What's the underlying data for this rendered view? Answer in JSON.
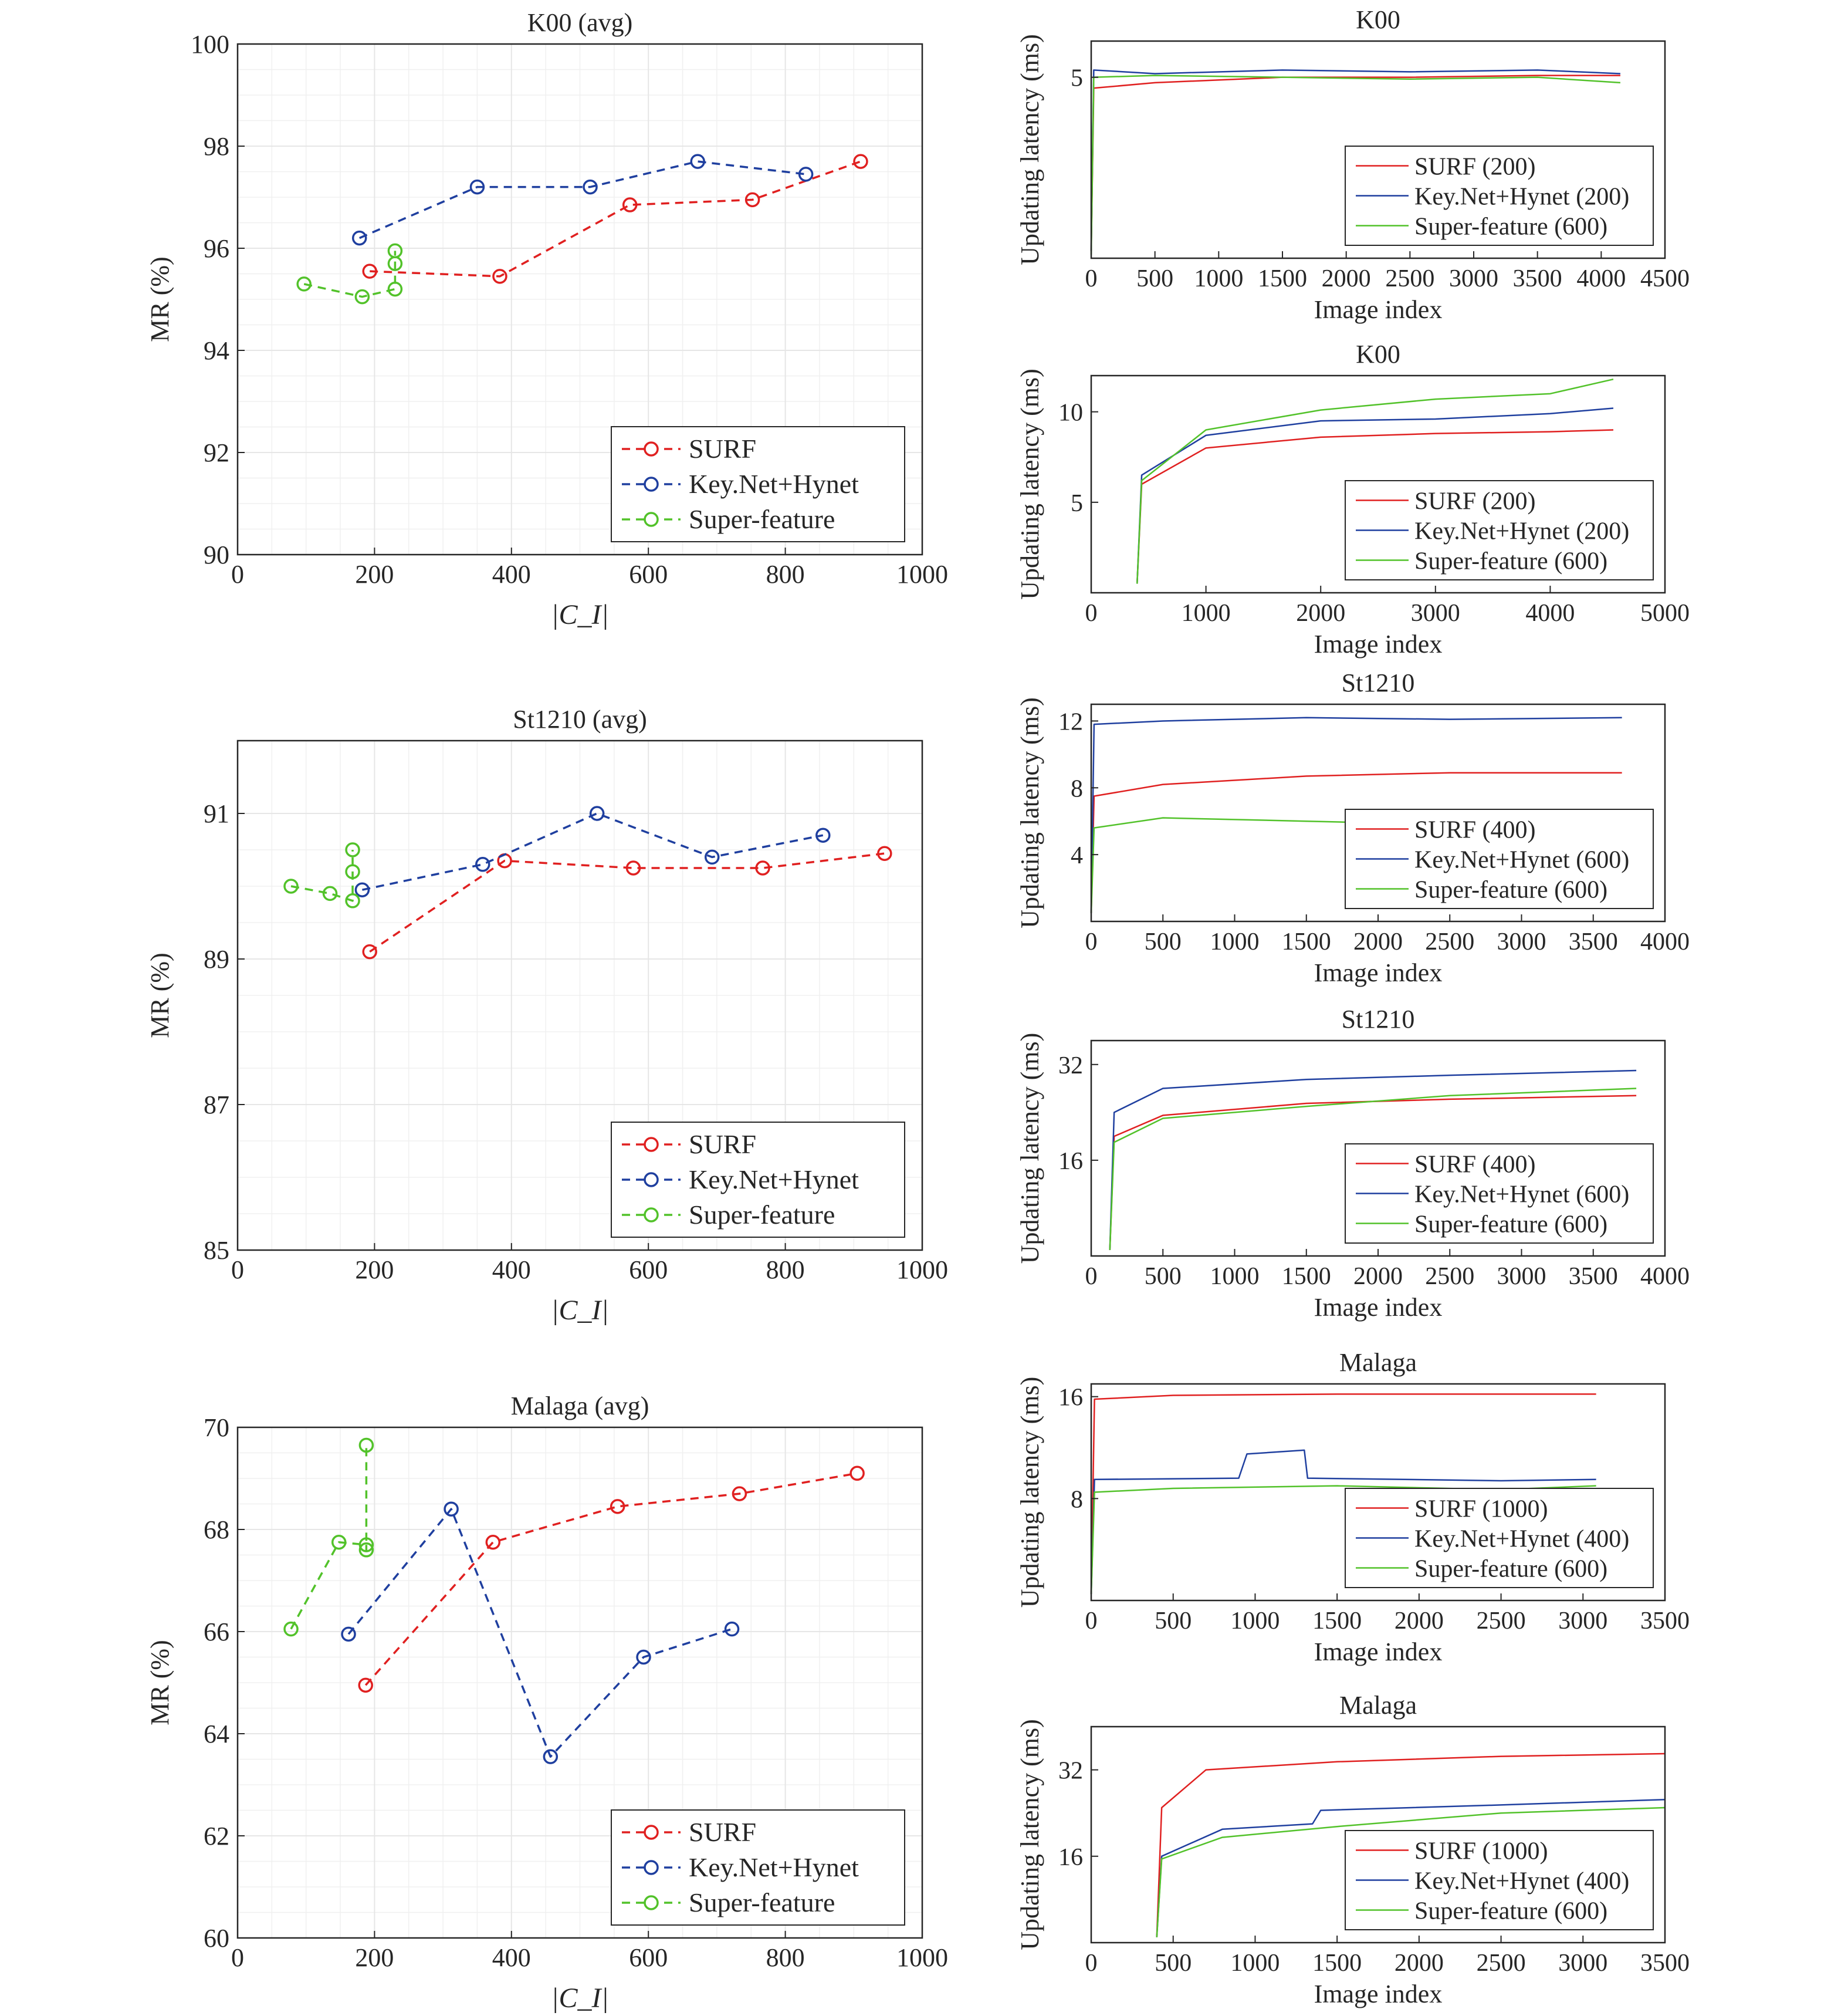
{
  "figure": {
    "colors": {
      "surf": "#e02020",
      "keynet": "#1f3f9f",
      "superfeature": "#52c22a",
      "axis": "#262626",
      "grid": "#e6e6e6"
    }
  },
  "chart_data": [
    {
      "id": "mr-k00",
      "type": "line",
      "marker": "o",
      "dashed": true,
      "title": "K00 (avg)",
      "xlabel": "|C_I|",
      "ylabel": "MR (%)",
      "xlim": [
        0,
        1000
      ],
      "ylim": [
        90,
        100
      ],
      "xticks": [
        0,
        200,
        400,
        600,
        800,
        1000
      ],
      "yticks": [
        90,
        92,
        94,
        96,
        98,
        100
      ],
      "grid": true,
      "minor_grid": true,
      "legend_position": "bottom-right",
      "series": [
        {
          "name": "SURF",
          "color": "#e02020",
          "points": [
            [
              193,
              95.55
            ],
            [
              383,
              95.45
            ],
            [
              573,
              96.85
            ],
            [
              752,
              96.95
            ],
            [
              910,
              97.7
            ]
          ]
        },
        {
          "name": "Key.Net+Hynet",
          "color": "#1f3f9f",
          "points": [
            [
              178,
              96.2
            ],
            [
              350,
              97.2
            ],
            [
              515,
              97.2
            ],
            [
              672,
              97.7
            ],
            [
              830,
              97.45
            ]
          ]
        },
        {
          "name": "Super-feature",
          "color": "#52c22a",
          "points": [
            [
              97,
              95.3
            ],
            [
              182,
              95.05
            ],
            [
              230,
              95.2
            ],
            [
              230,
              95.7
            ],
            [
              230,
              95.95
            ]
          ]
        }
      ]
    },
    {
      "id": "mr-st1210",
      "type": "line",
      "marker": "o",
      "dashed": true,
      "title": "St1210 (avg)",
      "xlabel": "|C_I|",
      "ylabel": "MR (%)",
      "xlim": [
        0,
        1000
      ],
      "ylim": [
        85,
        92
      ],
      "xticks": [
        0,
        200,
        400,
        600,
        800,
        1000
      ],
      "yticks": [
        85,
        87,
        89,
        91
      ],
      "grid": true,
      "minor_grid": true,
      "legend_position": "bottom-right",
      "series": [
        {
          "name": "SURF",
          "color": "#e02020",
          "points": [
            [
              193,
              89.1
            ],
            [
              390,
              90.35
            ],
            [
              578,
              90.25
            ],
            [
              767,
              90.25
            ],
            [
              945,
              90.45
            ]
          ]
        },
        {
          "name": "Key.Net+Hynet",
          "color": "#1f3f9f",
          "points": [
            [
              182,
              89.95
            ],
            [
              358,
              90.3
            ],
            [
              525,
              91.0
            ],
            [
              693,
              90.4
            ],
            [
              855,
              90.7
            ]
          ]
        },
        {
          "name": "Super-feature",
          "color": "#52c22a",
          "points": [
            [
              78,
              90.0
            ],
            [
              135,
              89.9
            ],
            [
              168,
              89.8
            ],
            [
              168,
              90.2
            ],
            [
              168,
              90.5
            ]
          ]
        }
      ]
    },
    {
      "id": "mr-malaga",
      "type": "line",
      "marker": "o",
      "dashed": true,
      "title": "Malaga (avg)",
      "xlabel": "|C_I|",
      "ylabel": "MR (%)",
      "xlim": [
        0,
        1000
      ],
      "ylim": [
        60,
        70
      ],
      "xticks": [
        0,
        200,
        400,
        600,
        800,
        1000
      ],
      "yticks": [
        60,
        62,
        64,
        66,
        68,
        70
      ],
      "grid": true,
      "minor_grid": true,
      "legend_position": "bottom-right",
      "series": [
        {
          "name": "SURF",
          "color": "#e02020",
          "points": [
            [
              187,
              64.95
            ],
            [
              373,
              67.75
            ],
            [
              555,
              68.45
            ],
            [
              733,
              68.7
            ],
            [
              905,
              69.1
            ]
          ]
        },
        {
          "name": "Key.Net+Hynet",
          "color": "#1f3f9f",
          "points": [
            [
              162,
              65.95
            ],
            [
              312,
              68.4
            ],
            [
              457,
              63.55
            ],
            [
              593,
              65.5
            ],
            [
              722,
              66.05
            ]
          ]
        },
        {
          "name": "Super-feature",
          "color": "#52c22a",
          "points": [
            [
              78,
              66.05
            ],
            [
              148,
              67.75
            ],
            [
              188,
              67.7
            ],
            [
              188,
              67.6
            ],
            [
              188,
              69.65
            ]
          ]
        }
      ]
    },
    {
      "id": "lat-k00-a",
      "type": "line",
      "title": "K00",
      "xlabel": "Image index",
      "ylabel": "Updating latency (ms)",
      "xlim": [
        0,
        4500
      ],
      "ylim": [
        0,
        6
      ],
      "xticks": [
        0,
        500,
        1000,
        1500,
        2000,
        2500,
        3000,
        3500,
        4000,
        4500
      ],
      "yticks": [
        5
      ],
      "grid": false,
      "legend_position": "bottom-right",
      "series": [
        {
          "name": "SURF (200)",
          "color": "#e02020",
          "points": [
            [
              0,
              0.2
            ],
            [
              20,
              4.7
            ],
            [
              500,
              4.85
            ],
            [
              1500,
              5.0
            ],
            [
              2500,
              5.0
            ],
            [
              3500,
              5.05
            ],
            [
              4150,
              5.05
            ]
          ]
        },
        {
          "name": "Key.Net+Hynet (200)",
          "color": "#1f3f9f",
          "points": [
            [
              0,
              0.2
            ],
            [
              20,
              5.2
            ],
            [
              500,
              5.1
            ],
            [
              1500,
              5.2
            ],
            [
              2500,
              5.15
            ],
            [
              3500,
              5.2
            ],
            [
              4150,
              5.1
            ]
          ]
        },
        {
          "name": "Super-feature (600)",
          "color": "#52c22a",
          "points": [
            [
              0,
              0.1
            ],
            [
              20,
              5.0
            ],
            [
              500,
              5.05
            ],
            [
              1500,
              5.0
            ],
            [
              2500,
              4.95
            ],
            [
              3500,
              5.0
            ],
            [
              4150,
              4.85
            ]
          ]
        }
      ]
    },
    {
      "id": "lat-k00-b",
      "type": "line",
      "title": "K00",
      "xlabel": "Image index",
      "ylabel": "Updating latency (ms)",
      "xlim": [
        0,
        5000
      ],
      "ylim": [
        0,
        12
      ],
      "xticks": [
        0,
        1000,
        2000,
        3000,
        4000,
        5000
      ],
      "yticks": [
        5,
        10
      ],
      "grid": false,
      "legend_position": "bottom-right",
      "series": [
        {
          "name": "SURF (200)",
          "color": "#e02020",
          "points": [
            [
              400,
              0.5
            ],
            [
              440,
              6.0
            ],
            [
              1000,
              8.0
            ],
            [
              2000,
              8.6
            ],
            [
              3000,
              8.8
            ],
            [
              4000,
              8.9
            ],
            [
              4550,
              9.0
            ]
          ]
        },
        {
          "name": "Key.Net+Hynet (200)",
          "color": "#1f3f9f",
          "points": [
            [
              400,
              0.5
            ],
            [
              440,
              6.5
            ],
            [
              1000,
              8.7
            ],
            [
              2000,
              9.5
            ],
            [
              3000,
              9.6
            ],
            [
              4000,
              9.9
            ],
            [
              4550,
              10.2
            ]
          ]
        },
        {
          "name": "Super-feature (600)",
          "color": "#52c22a",
          "points": [
            [
              400,
              0.5
            ],
            [
              440,
              6.2
            ],
            [
              1000,
              9.0
            ],
            [
              2000,
              10.1
            ],
            [
              3000,
              10.7
            ],
            [
              4000,
              11.0
            ],
            [
              4550,
              11.8
            ]
          ]
        }
      ]
    },
    {
      "id": "lat-st1210-a",
      "type": "line",
      "title": "St1210",
      "xlabel": "Image index",
      "ylabel": "Updating latency (ms)",
      "xlim": [
        0,
        4000
      ],
      "ylim": [
        0,
        13
      ],
      "xticks": [
        0,
        500,
        1000,
        1500,
        2000,
        2500,
        3000,
        3500,
        4000
      ],
      "yticks": [
        4,
        8,
        12
      ],
      "grid": false,
      "legend_position": "bottom-right",
      "series": [
        {
          "name": "SURF (400)",
          "color": "#e02020",
          "points": [
            [
              0,
              0.5
            ],
            [
              20,
              7.5
            ],
            [
              500,
              8.2
            ],
            [
              1500,
              8.7
            ],
            [
              2500,
              8.9
            ],
            [
              3700,
              8.9
            ]
          ]
        },
        {
          "name": "Key.Net+Hynet (600)",
          "color": "#1f3f9f",
          "points": [
            [
              0,
              0.5
            ],
            [
              20,
              11.8
            ],
            [
              500,
              12.0
            ],
            [
              1500,
              12.2
            ],
            [
              2500,
              12.1
            ],
            [
              3700,
              12.2
            ]
          ]
        },
        {
          "name": "Super-feature (600)",
          "color": "#52c22a",
          "points": [
            [
              0,
              0.5
            ],
            [
              20,
              5.6
            ],
            [
              500,
              6.2
            ],
            [
              1500,
              6.0
            ],
            [
              2500,
              5.8
            ],
            [
              3700,
              5.5
            ]
          ]
        }
      ]
    },
    {
      "id": "lat-st1210-b",
      "type": "line",
      "title": "St1210",
      "xlabel": "Image index",
      "ylabel": "Updating latency (ms)",
      "xlim": [
        0,
        4000
      ],
      "ylim": [
        0,
        36
      ],
      "xticks": [
        0,
        500,
        1000,
        1500,
        2000,
        2500,
        3000,
        3500,
        4000
      ],
      "yticks": [
        16,
        32
      ],
      "grid": false,
      "legend_position": "bottom-right",
      "series": [
        {
          "name": "SURF (400)",
          "color": "#e02020",
          "points": [
            [
              130,
              1.0
            ],
            [
              160,
              20.0
            ],
            [
              500,
              23.5
            ],
            [
              1500,
              25.5
            ],
            [
              2500,
              26.2
            ],
            [
              3800,
              26.8
            ]
          ]
        },
        {
          "name": "Key.Net+Hynet (600)",
          "color": "#1f3f9f",
          "points": [
            [
              130,
              1.0
            ],
            [
              160,
              24.0
            ],
            [
              500,
              28.0
            ],
            [
              1500,
              29.5
            ],
            [
              2500,
              30.2
            ],
            [
              3800,
              31.0
            ]
          ]
        },
        {
          "name": "Super-feature (600)",
          "color": "#52c22a",
          "points": [
            [
              130,
              1.0
            ],
            [
              160,
              19.0
            ],
            [
              500,
              23.0
            ],
            [
              1500,
              25.0
            ],
            [
              2500,
              26.8
            ],
            [
              3800,
              28.0
            ]
          ]
        }
      ]
    },
    {
      "id": "lat-malaga-a",
      "type": "line",
      "title": "Malaga",
      "xlabel": "Image index",
      "ylabel": "Updating latency (ms)",
      "xlim": [
        0,
        3500
      ],
      "ylim": [
        0,
        17
      ],
      "xticks": [
        0,
        500,
        1000,
        1500,
        2000,
        2500,
        3000,
        3500
      ],
      "yticks": [
        8,
        16
      ],
      "grid": false,
      "legend_position": "bottom-right",
      "series": [
        {
          "name": "SURF (1000)",
          "color": "#e02020",
          "points": [
            [
              0,
              0.5
            ],
            [
              20,
              15.8
            ],
            [
              500,
              16.1
            ],
            [
              1500,
              16.2
            ],
            [
              2500,
              16.2
            ],
            [
              3080,
              16.2
            ]
          ]
        },
        {
          "name": "Key.Net+Hynet (400)",
          "color": "#1f3f9f",
          "points": [
            [
              0,
              0.5
            ],
            [
              20,
              9.5
            ],
            [
              900,
              9.6
            ],
            [
              950,
              11.5
            ],
            [
              1300,
              11.8
            ],
            [
              1320,
              9.6
            ],
            [
              2500,
              9.4
            ],
            [
              3080,
              9.5
            ]
          ]
        },
        {
          "name": "Super-feature (600)",
          "color": "#52c22a",
          "points": [
            [
              0,
              0.5
            ],
            [
              20,
              8.5
            ],
            [
              500,
              8.8
            ],
            [
              1500,
              9.0
            ],
            [
              2500,
              8.7
            ],
            [
              3080,
              9.0
            ]
          ]
        }
      ]
    },
    {
      "id": "lat-malaga-b",
      "type": "line",
      "title": "Malaga",
      "xlabel": "Image index",
      "ylabel": "Updating latency (ms)",
      "xlim": [
        0,
        3500
      ],
      "ylim": [
        0,
        40
      ],
      "xticks": [
        0,
        500,
        1000,
        1500,
        2000,
        2500,
        3000,
        3500
      ],
      "yticks": [
        16,
        32
      ],
      "grid": false,
      "legend_position": "bottom-right",
      "series": [
        {
          "name": "SURF (1000)",
          "color": "#e02020",
          "points": [
            [
              400,
              1.0
            ],
            [
              430,
              25.0
            ],
            [
              700,
              32.0
            ],
            [
              1500,
              33.5
            ],
            [
              2500,
              34.5
            ],
            [
              3500,
              35.0
            ]
          ]
        },
        {
          "name": "Key.Net+Hynet (400)",
          "color": "#1f3f9f",
          "points": [
            [
              400,
              1.0
            ],
            [
              430,
              16.0
            ],
            [
              800,
              21.0
            ],
            [
              1350,
              22.0
            ],
            [
              1400,
              24.5
            ],
            [
              2500,
              25.5
            ],
            [
              3500,
              26.5
            ]
          ]
        },
        {
          "name": "Super-feature (600)",
          "color": "#52c22a",
          "points": [
            [
              400,
              1.0
            ],
            [
              430,
              15.5
            ],
            [
              800,
              19.5
            ],
            [
              1500,
              21.5
            ],
            [
              2500,
              24.0
            ],
            [
              3500,
              25.0
            ]
          ]
        }
      ]
    }
  ]
}
